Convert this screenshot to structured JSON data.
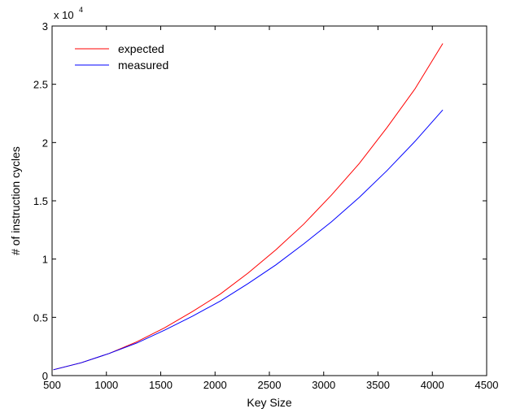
{
  "chart_data": {
    "type": "line",
    "title": "",
    "xlabel": "Key Size",
    "ylabel": "# of instruction cycles",
    "xlim": [
      500,
      4500
    ],
    "ylim": [
      0,
      30000
    ],
    "xticks": [
      500,
      1000,
      1500,
      2000,
      2500,
      3000,
      3500,
      4000,
      4500
    ],
    "xtick_labels": [
      "500",
      "1000",
      "1500",
      "2000",
      "2500",
      "3000",
      "3500",
      "4000",
      "4500"
    ],
    "yticks": [
      0,
      5000,
      10000,
      15000,
      20000,
      25000,
      30000
    ],
    "ytick_labels": [
      "0",
      "0.5",
      "1",
      "1.5",
      "2",
      "2.5",
      "3"
    ],
    "y_multiplier": {
      "base": "x 10",
      "exponent": "4"
    },
    "grid": false,
    "legend_position": "top-left",
    "series": [
      {
        "name": "expected",
        "color": "#ff0000",
        "x": [
          512,
          768,
          1024,
          1280,
          1536,
          1792,
          2048,
          2304,
          2560,
          2816,
          3072,
          3328,
          3584,
          3840,
          4096
        ],
        "y": [
          500,
          1100,
          1900,
          2900,
          4100,
          5500,
          7000,
          8800,
          10800,
          13000,
          15500,
          18200,
          21300,
          24600,
          28500
        ]
      },
      {
        "name": "measured",
        "color": "#0000ff",
        "x": [
          512,
          768,
          1024,
          1280,
          1536,
          1792,
          2048,
          2304,
          2560,
          2816,
          3072,
          3328,
          3584,
          3840,
          4096
        ],
        "y": [
          500,
          1100,
          1900,
          2800,
          3900,
          5100,
          6400,
          7900,
          9500,
          11300,
          13200,
          15300,
          17600,
          20100,
          22800
        ]
      }
    ]
  }
}
